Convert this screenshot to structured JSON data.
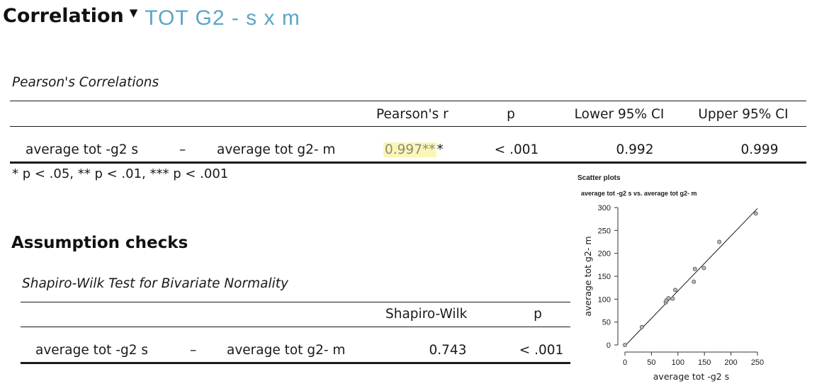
{
  "header": {
    "title": "Correlation",
    "caret": "▼",
    "subtitle": "TOT G2 - s x m"
  },
  "pearson": {
    "caption": "Pearson's Correlations",
    "columns": [
      "Pearson's r",
      "p",
      "Lower 95% CI",
      "Upper 95% CI"
    ],
    "row": {
      "var1": "average tot -g2 s",
      "dash": "–",
      "var2": "average tot g2- m",
      "r_highlighted": "0.997**",
      "r_suffix": "*",
      "p": "< .001",
      "lower": "0.992",
      "upper": "0.999"
    },
    "footnote": "* p < .05, ** p < .01, *** p < .001"
  },
  "assumptions": {
    "heading": "Assumption checks",
    "caption": "Shapiro-Wilk Test for Bivariate Normality",
    "columns": [
      "Shapiro-Wilk",
      "p"
    ],
    "row": {
      "var1": "average tot -g2 s",
      "dash": "–",
      "var2": "average tot g2- m",
      "w": "0.743",
      "p": "< .001"
    }
  },
  "scatter": {
    "title": "Scatter plots",
    "subtitle": "average tot -g2 s vs. average tot g2- m"
  },
  "chart_data": {
    "type": "scatter",
    "title": "average tot -g2 s vs. average tot g2- m",
    "xlabel": "average tot -g2 s",
    "ylabel": "average tot g2- m",
    "xlim": [
      0,
      250
    ],
    "ylim": [
      0,
      300
    ],
    "xticks": [
      0,
      50,
      100,
      150,
      200,
      250
    ],
    "yticks": [
      0,
      50,
      100,
      150,
      200,
      250,
      300
    ],
    "points": [
      {
        "x": 0,
        "y": 0
      },
      {
        "x": 32,
        "y": 39
      },
      {
        "x": 77,
        "y": 93
      },
      {
        "x": 78,
        "y": 97
      },
      {
        "x": 82,
        "y": 102
      },
      {
        "x": 90,
        "y": 101
      },
      {
        "x": 95,
        "y": 120
      },
      {
        "x": 130,
        "y": 138
      },
      {
        "x": 132,
        "y": 166
      },
      {
        "x": 149,
        "y": 168
      },
      {
        "x": 178,
        "y": 225
      },
      {
        "x": 247,
        "y": 287
      }
    ],
    "regression_line": [
      {
        "x": 0,
        "y": -2
      },
      {
        "x": 250,
        "y": 298
      }
    ]
  }
}
